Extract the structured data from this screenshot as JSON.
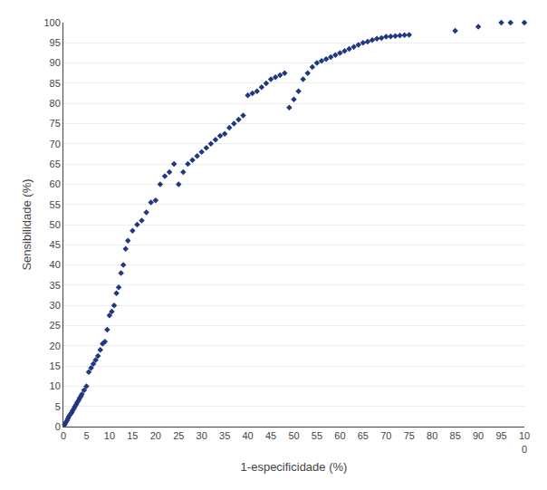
{
  "chart_data": {
    "type": "scatter",
    "xlabel": "1-especificidade (%)",
    "ylabel": "Sensibilidade (%)",
    "color": "#1F3880",
    "marker": "diamond",
    "grid": "y",
    "xlim": [
      0,
      100
    ],
    "ylim": [
      0,
      100
    ],
    "xticks": [
      0,
      5,
      10,
      15,
      20,
      25,
      30,
      35,
      40,
      45,
      50,
      55,
      60,
      65,
      70,
      75,
      80,
      85,
      90,
      95,
      {
        "value": 100,
        "label": "10\n0"
      }
    ],
    "yticks": [
      0,
      5,
      10,
      15,
      20,
      25,
      30,
      35,
      40,
      45,
      50,
      55,
      60,
      65,
      70,
      75,
      80,
      85,
      90,
      95,
      100
    ],
    "x": [
      0.3,
      0.5,
      0.8,
      1.0,
      1.2,
      1.5,
      1.8,
      2.0,
      2.3,
      2.5,
      2.8,
      3.0,
      3.3,
      3.5,
      3.8,
      4.0,
      4.5,
      5.0,
      5.5,
      6.0,
      6.5,
      7.0,
      7.5,
      8.0,
      8.5,
      9.0,
      9.5,
      10.0,
      10.5,
      11.0,
      11.5,
      12.0,
      12.5,
      13.0,
      13.5,
      14.0,
      15.0,
      16.0,
      17.0,
      18.0,
      19.0,
      20.0,
      21.0,
      22.0,
      23.0,
      24.0,
      25.0,
      26.0,
      27.0,
      28.0,
      29.0,
      30.0,
      31.0,
      32.0,
      33.0,
      34.0,
      35.0,
      36.0,
      37.0,
      38.0,
      39.0,
      40.0,
      41.0,
      42.0,
      43.0,
      44.0,
      45.0,
      46.0,
      47.0,
      48.0,
      49.0,
      50.0,
      51.0,
      52.0,
      53.0,
      54.0,
      55.0,
      56.0,
      57.0,
      58.0,
      59.0,
      60.0,
      61.0,
      62.0,
      63.0,
      64.0,
      65.0,
      66.0,
      67.0,
      68.0,
      69.0,
      70.0,
      71.0,
      72.0,
      73.0,
      74.0,
      75.0,
      85.0,
      90.0,
      95.0,
      97.0,
      100.0
    ],
    "values": [
      0.5,
      1.0,
      1.5,
      2.0,
      2.5,
      3.0,
      3.5,
      4.0,
      4.5,
      5.0,
      5.5,
      6.0,
      6.5,
      7.0,
      7.5,
      8.0,
      9.0,
      10.0,
      13.5,
      14.5,
      15.5,
      16.5,
      17.5,
      19.0,
      20.5,
      21.0,
      24.0,
      27.5,
      28.5,
      30.0,
      33.0,
      34.5,
      38.0,
      40.0,
      44.0,
      46.0,
      48.5,
      50.0,
      51.0,
      53.0,
      55.5,
      56.0,
      60.0,
      62.0,
      63.0,
      65.0,
      60.0,
      63.0,
      65.0,
      66.0,
      67.0,
      68.0,
      69.0,
      70.0,
      71.0,
      72.0,
      72.5,
      74.0,
      75.0,
      76.0,
      77.0,
      82.0,
      82.5,
      83.0,
      84.0,
      85.0,
      86.0,
      86.5,
      87.0,
      87.5,
      79.0,
      81.0,
      83.0,
      86.0,
      87.5,
      89.0,
      90.0,
      90.5,
      91.0,
      91.5,
      92.0,
      92.5,
      93.0,
      93.5,
      94.0,
      94.5,
      95.0,
      95.3,
      95.7,
      96.0,
      96.2,
      96.5,
      96.6,
      96.7,
      96.8,
      96.9,
      97.0,
      98.0,
      99.0,
      100.0,
      100.0,
      100.0
    ]
  }
}
